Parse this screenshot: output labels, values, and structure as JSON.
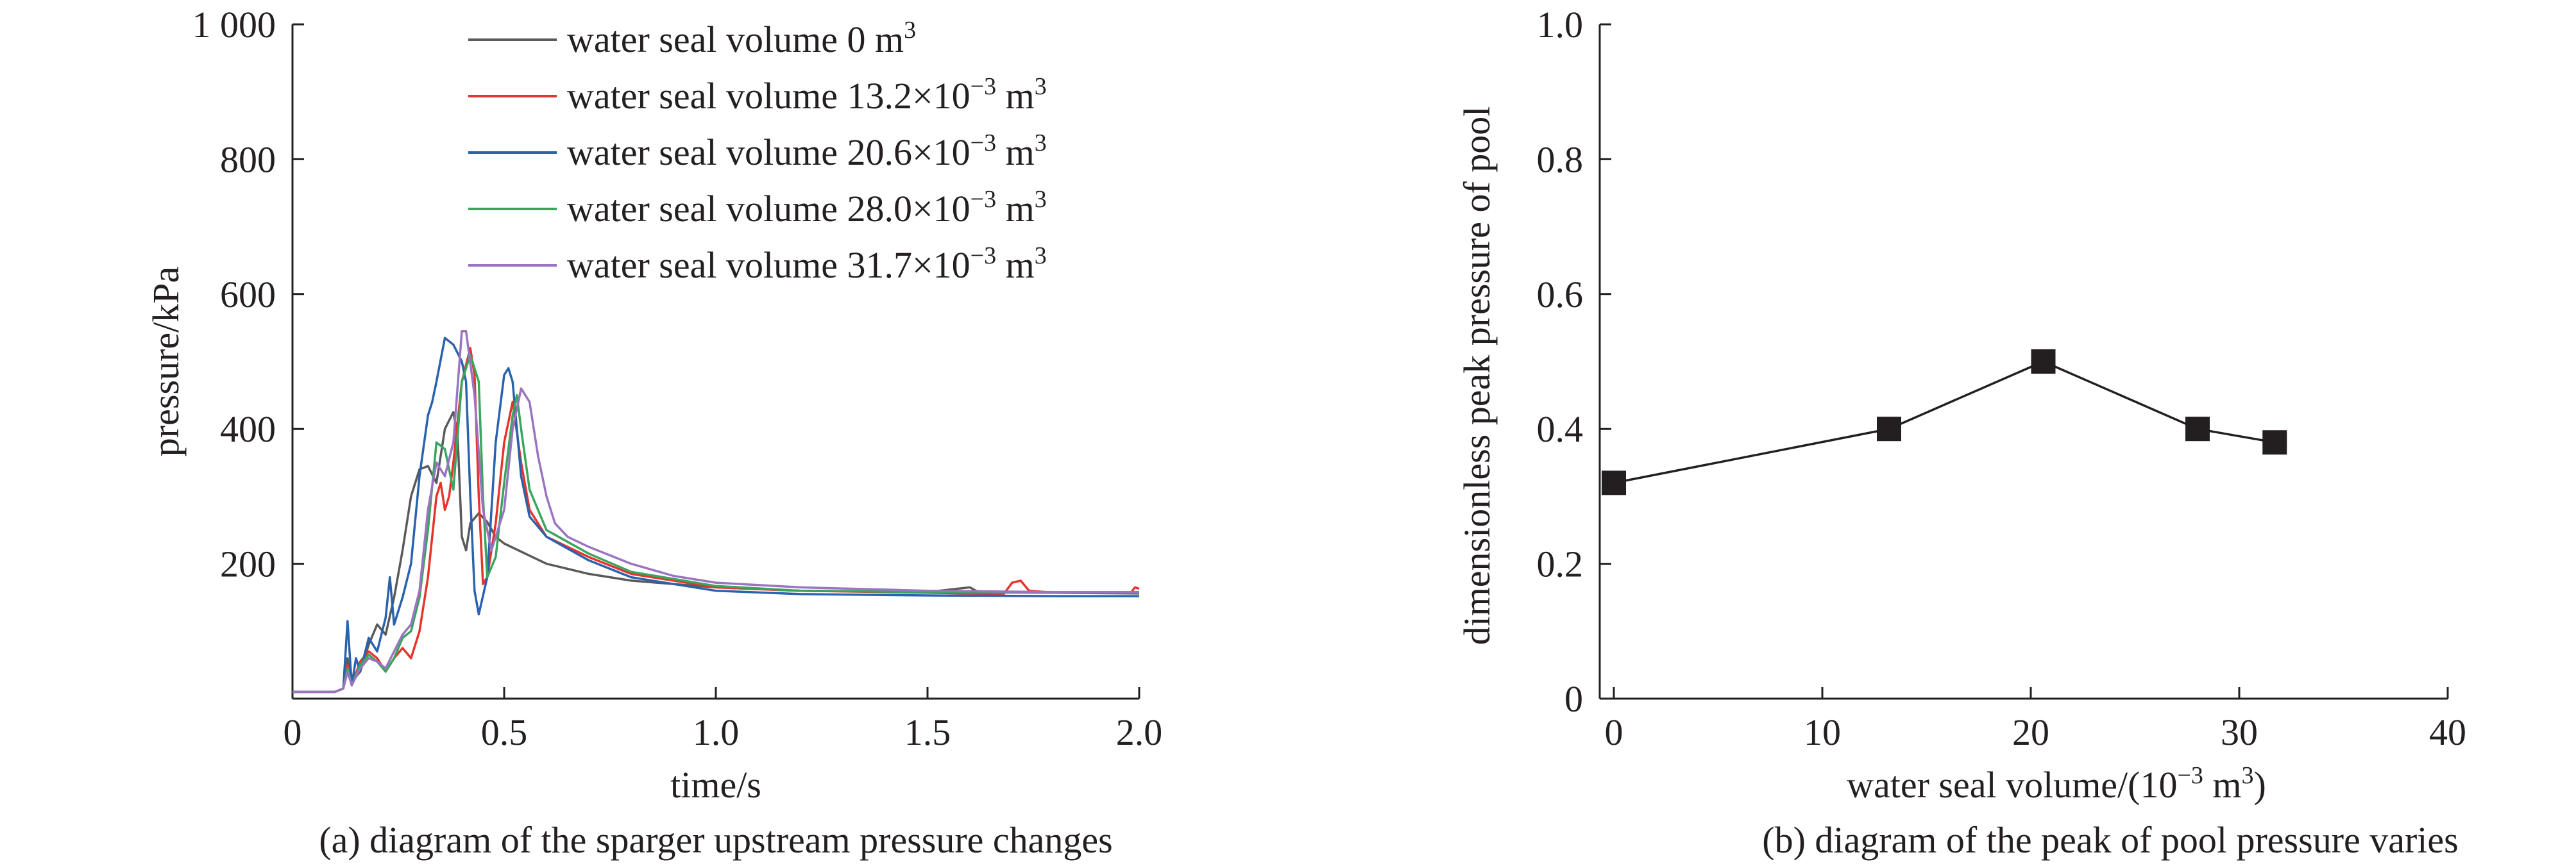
{
  "chart_data": [
    {
      "type": "line",
      "caption": "(a) diagram of the sparger upstream pressure changes",
      "xlabel": "time/s",
      "ylabel": "pressure/kPa",
      "xlim": [
        0,
        2.0
      ],
      "ylim": [
        0,
        1000
      ],
      "x_ticks": [
        {
          "value": 0,
          "label": "0"
        },
        {
          "value": 0.5,
          "label": "0.5"
        },
        {
          "value": 1.0,
          "label": "1.0"
        },
        {
          "value": 1.5,
          "label": "1.5"
        },
        {
          "value": 2.0,
          "label": "2.0"
        }
      ],
      "y_ticks": [
        {
          "value": 200,
          "label": "200"
        },
        {
          "value": 400,
          "label": "400"
        },
        {
          "value": 600,
          "label": "600"
        },
        {
          "value": 800,
          "label": "800"
        },
        {
          "value": 1000,
          "label": "1 000"
        }
      ],
      "legend_position": "top-right",
      "series": [
        {
          "name": "water seal volume 0 m³",
          "color": "#5a5a5a",
          "points": [
            [
              0,
              10
            ],
            [
              0.1,
              10
            ],
            [
              0.12,
              15
            ],
            [
              0.13,
              60
            ],
            [
              0.14,
              25
            ],
            [
              0.16,
              40
            ],
            [
              0.18,
              80
            ],
            [
              0.2,
              110
            ],
            [
              0.22,
              95
            ],
            [
              0.24,
              150
            ],
            [
              0.26,
              220
            ],
            [
              0.28,
              300
            ],
            [
              0.3,
              340
            ],
            [
              0.32,
              345
            ],
            [
              0.34,
              320
            ],
            [
              0.36,
              400
            ],
            [
              0.38,
              425
            ],
            [
              0.39,
              390
            ],
            [
              0.4,
              240
            ],
            [
              0.41,
              220
            ],
            [
              0.42,
              260
            ],
            [
              0.44,
              275
            ],
            [
              0.46,
              262
            ],
            [
              0.48,
              240
            ],
            [
              0.5,
              230
            ],
            [
              0.55,
              215
            ],
            [
              0.6,
              200
            ],
            [
              0.7,
              185
            ],
            [
              0.8,
              175
            ],
            [
              1.0,
              165
            ],
            [
              1.2,
              160
            ],
            [
              1.5,
              158
            ],
            [
              1.6,
              165
            ],
            [
              1.62,
              158
            ],
            [
              1.8,
              157
            ],
            [
              2.0,
              156
            ]
          ]
        },
        {
          "name": "water seal volume 13.2×10⁻³ m³",
          "color": "#e8332d",
          "points": [
            [
              0,
              10
            ],
            [
              0.1,
              10
            ],
            [
              0.12,
              15
            ],
            [
              0.13,
              50
            ],
            [
              0.14,
              20
            ],
            [
              0.16,
              55
            ],
            [
              0.18,
              70
            ],
            [
              0.2,
              60
            ],
            [
              0.22,
              40
            ],
            [
              0.24,
              60
            ],
            [
              0.26,
              75
            ],
            [
              0.28,
              60
            ],
            [
              0.3,
              100
            ],
            [
              0.32,
              180
            ],
            [
              0.34,
              300
            ],
            [
              0.35,
              320
            ],
            [
              0.36,
              280
            ],
            [
              0.37,
              300
            ],
            [
              0.38,
              350
            ],
            [
              0.4,
              470
            ],
            [
              0.42,
              520
            ],
            [
              0.43,
              480
            ],
            [
              0.44,
              300
            ],
            [
              0.45,
              170
            ],
            [
              0.46,
              180
            ],
            [
              0.48,
              260
            ],
            [
              0.5,
              380
            ],
            [
              0.52,
              440
            ],
            [
              0.54,
              350
            ],
            [
              0.56,
              280
            ],
            [
              0.6,
              240
            ],
            [
              0.7,
              210
            ],
            [
              0.8,
              185
            ],
            [
              1.0,
              165
            ],
            [
              1.2,
              160
            ],
            [
              1.5,
              157
            ],
            [
              1.68,
              155
            ],
            [
              1.7,
              172
            ],
            [
              1.72,
              175
            ],
            [
              1.74,
              160
            ],
            [
              1.8,
              157
            ],
            [
              1.98,
              157
            ],
            [
              1.99,
              165
            ],
            [
              2.0,
              163
            ]
          ]
        },
        {
          "name": "water seal volume 20.6×10⁻³ m³",
          "color": "#2a62ad",
          "points": [
            [
              0,
              10
            ],
            [
              0.1,
              10
            ],
            [
              0.12,
              15
            ],
            [
              0.13,
              115
            ],
            [
              0.14,
              20
            ],
            [
              0.15,
              60
            ],
            [
              0.16,
              40
            ],
            [
              0.18,
              90
            ],
            [
              0.2,
              70
            ],
            [
              0.22,
              120
            ],
            [
              0.23,
              180
            ],
            [
              0.24,
              110
            ],
            [
              0.26,
              150
            ],
            [
              0.28,
              200
            ],
            [
              0.3,
              330
            ],
            [
              0.32,
              420
            ],
            [
              0.33,
              440
            ],
            [
              0.34,
              470
            ],
            [
              0.36,
              535
            ],
            [
              0.38,
              525
            ],
            [
              0.4,
              500
            ],
            [
              0.41,
              470
            ],
            [
              0.42,
              300
            ],
            [
              0.43,
              160
            ],
            [
              0.44,
              125
            ],
            [
              0.46,
              180
            ],
            [
              0.48,
              380
            ],
            [
              0.5,
              480
            ],
            [
              0.51,
              490
            ],
            [
              0.52,
              470
            ],
            [
              0.54,
              330
            ],
            [
              0.56,
              270
            ],
            [
              0.6,
              240
            ],
            [
              0.7,
              205
            ],
            [
              0.8,
              180
            ],
            [
              1.0,
              160
            ],
            [
              1.2,
              155
            ],
            [
              1.5,
              153
            ],
            [
              1.8,
              152
            ],
            [
              2.0,
              152
            ]
          ]
        },
        {
          "name": "water seal volume 28.0×10⁻³ m³",
          "color": "#3aa55d",
          "points": [
            [
              0,
              10
            ],
            [
              0.1,
              10
            ],
            [
              0.12,
              15
            ],
            [
              0.13,
              45
            ],
            [
              0.14,
              20
            ],
            [
              0.16,
              50
            ],
            [
              0.18,
              65
            ],
            [
              0.2,
              55
            ],
            [
              0.22,
              40
            ],
            [
              0.24,
              60
            ],
            [
              0.26,
              90
            ],
            [
              0.28,
              100
            ],
            [
              0.3,
              150
            ],
            [
              0.32,
              250
            ],
            [
              0.34,
              380
            ],
            [
              0.36,
              370
            ],
            [
              0.38,
              310
            ],
            [
              0.4,
              470
            ],
            [
              0.42,
              510
            ],
            [
              0.44,
              470
            ],
            [
              0.45,
              300
            ],
            [
              0.46,
              180
            ],
            [
              0.48,
              210
            ],
            [
              0.5,
              320
            ],
            [
              0.52,
              420
            ],
            [
              0.53,
              450
            ],
            [
              0.54,
              400
            ],
            [
              0.56,
              310
            ],
            [
              0.6,
              250
            ],
            [
              0.7,
              215
            ],
            [
              0.8,
              188
            ],
            [
              1.0,
              167
            ],
            [
              1.2,
              160
            ],
            [
              1.5,
              158
            ],
            [
              1.8,
              157
            ],
            [
              2.0,
              157
            ]
          ]
        },
        {
          "name": "water seal volume 31.7×10⁻³ m³",
          "color": "#9a74c1",
          "points": [
            [
              0,
              10
            ],
            [
              0.1,
              10
            ],
            [
              0.12,
              15
            ],
            [
              0.13,
              40
            ],
            [
              0.14,
              20
            ],
            [
              0.16,
              45
            ],
            [
              0.18,
              60
            ],
            [
              0.2,
              55
            ],
            [
              0.22,
              45
            ],
            [
              0.24,
              70
            ],
            [
              0.26,
              95
            ],
            [
              0.28,
              110
            ],
            [
              0.3,
              160
            ],
            [
              0.32,
              280
            ],
            [
              0.34,
              350
            ],
            [
              0.36,
              330
            ],
            [
              0.38,
              380
            ],
            [
              0.4,
              545
            ],
            [
              0.41,
              545
            ],
            [
              0.43,
              450
            ],
            [
              0.45,
              280
            ],
            [
              0.47,
              220
            ],
            [
              0.5,
              280
            ],
            [
              0.52,
              400
            ],
            [
              0.54,
              460
            ],
            [
              0.56,
              440
            ],
            [
              0.58,
              360
            ],
            [
              0.6,
              300
            ],
            [
              0.62,
              260
            ],
            [
              0.65,
              240
            ],
            [
              0.7,
              225
            ],
            [
              0.8,
              200
            ],
            [
              0.9,
              182
            ],
            [
              1.0,
              172
            ],
            [
              1.2,
              165
            ],
            [
              1.5,
              160
            ],
            [
              1.8,
              158
            ],
            [
              2.0,
              158
            ]
          ]
        }
      ]
    },
    {
      "type": "line",
      "caption": "(b) diagram of the peak of pool pressure varies",
      "xlabel": "water seal volume/(10⁻³ m³)",
      "ylabel": "dimensionless peak pressure of  pool",
      "xlim": [
        0,
        40
      ],
      "ylim": [
        0,
        1.0
      ],
      "x_ticks": [
        {
          "value": 0,
          "label": "0"
        },
        {
          "value": 10,
          "label": "10"
        },
        {
          "value": 20,
          "label": "20"
        },
        {
          "value": 30,
          "label": "30"
        },
        {
          "value": 40,
          "label": "40"
        }
      ],
      "y_ticks": [
        {
          "value": 0,
          "label": "0"
        },
        {
          "value": 0.2,
          "label": "0.2"
        },
        {
          "value": 0.4,
          "label": "0.4"
        },
        {
          "value": 0.6,
          "label": "0.6"
        },
        {
          "value": 0.8,
          "label": "0.8"
        },
        {
          "value": 1.0,
          "label": "1.0"
        }
      ],
      "marker": "square",
      "series": [
        {
          "color": "#231f20",
          "x": [
            0,
            13.2,
            20.6,
            28.0,
            31.7
          ],
          "y": [
            0.32,
            0.4,
            0.5,
            0.4,
            0.38
          ]
        }
      ]
    }
  ]
}
